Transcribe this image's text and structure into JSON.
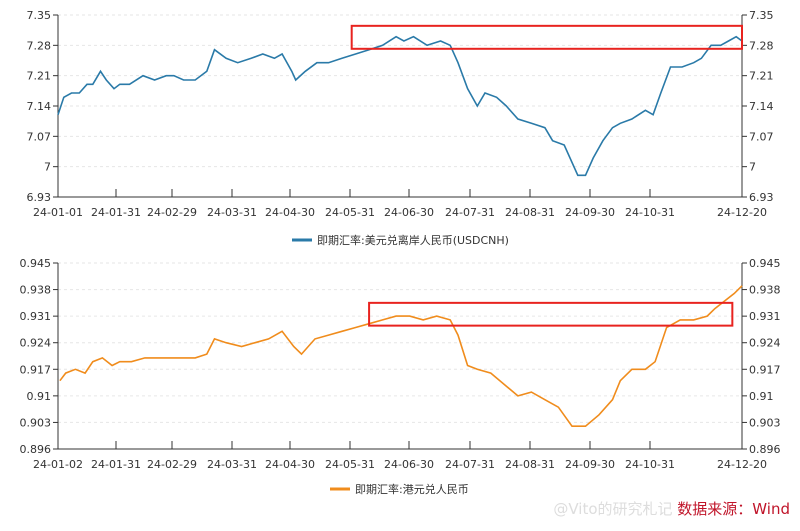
{
  "chart_data": [
    {
      "type": "line",
      "color": "#2a7aa8",
      "legend": "即期汇率:美元兑离岸人民币(USDCNH)",
      "legend_position": "bottom",
      "ylim": [
        6.93,
        7.35
      ],
      "yticks": [
        "7.35",
        "7.28",
        "7.21",
        "7.14",
        "7.07",
        "7",
        "6.93"
      ],
      "xticks": [
        "24-01-01",
        "24-01-31",
        "24-02-29",
        "24-03-31",
        "24-04-30",
        "24-05-31",
        "24-06-30",
        "24-07-31",
        "24-08-31",
        "24-09-30",
        "24-10-31",
        "24-12-20"
      ],
      "grid": true,
      "highlight": {
        "from": "2024-06-01",
        "to": "2024-12-20",
        "ylim": [
          7.272,
          7.325
        ],
        "color": "#e8231f"
      },
      "points": [
        [
          "2024-01-01",
          7.12
        ],
        [
          "2024-01-04",
          7.16
        ],
        [
          "2024-01-08",
          7.17
        ],
        [
          "2024-01-12",
          7.17
        ],
        [
          "2024-01-16",
          7.19
        ],
        [
          "2024-01-19",
          7.19
        ],
        [
          "2024-01-23",
          7.22
        ],
        [
          "2024-01-26",
          7.2
        ],
        [
          "2024-01-30",
          7.18
        ],
        [
          "2024-02-02",
          7.19
        ],
        [
          "2024-02-07",
          7.19
        ],
        [
          "2024-02-14",
          7.21
        ],
        [
          "2024-02-20",
          7.2
        ],
        [
          "2024-02-26",
          7.21
        ],
        [
          "2024-03-01",
          7.21
        ],
        [
          "2024-03-06",
          7.2
        ],
        [
          "2024-03-12",
          7.2
        ],
        [
          "2024-03-18",
          7.22
        ],
        [
          "2024-03-22",
          7.27
        ],
        [
          "2024-03-28",
          7.25
        ],
        [
          "2024-04-03",
          7.24
        ],
        [
          "2024-04-10",
          7.25
        ],
        [
          "2024-04-16",
          7.26
        ],
        [
          "2024-04-22",
          7.25
        ],
        [
          "2024-04-26",
          7.26
        ],
        [
          "2024-05-01",
          7.22
        ],
        [
          "2024-05-03",
          7.2
        ],
        [
          "2024-05-08",
          7.22
        ],
        [
          "2024-05-14",
          7.24
        ],
        [
          "2024-05-20",
          7.24
        ],
        [
          "2024-05-27",
          7.25
        ],
        [
          "2024-06-03",
          7.26
        ],
        [
          "2024-06-10",
          7.27
        ],
        [
          "2024-06-17",
          7.28
        ],
        [
          "2024-06-24",
          7.3
        ],
        [
          "2024-06-28",
          7.29
        ],
        [
          "2024-07-03",
          7.3
        ],
        [
          "2024-07-10",
          7.28
        ],
        [
          "2024-07-17",
          7.29
        ],
        [
          "2024-07-22",
          7.28
        ],
        [
          "2024-07-26",
          7.24
        ],
        [
          "2024-07-31",
          7.18
        ],
        [
          "2024-08-05",
          7.14
        ],
        [
          "2024-08-09",
          7.17
        ],
        [
          "2024-08-15",
          7.16
        ],
        [
          "2024-08-20",
          7.14
        ],
        [
          "2024-08-26",
          7.11
        ],
        [
          "2024-09-02",
          7.1
        ],
        [
          "2024-09-09",
          7.09
        ],
        [
          "2024-09-13",
          7.06
        ],
        [
          "2024-09-19",
          7.05
        ],
        [
          "2024-09-26",
          6.98
        ],
        [
          "2024-09-30",
          6.98
        ],
        [
          "2024-10-04",
          7.02
        ],
        [
          "2024-10-09",
          7.06
        ],
        [
          "2024-10-14",
          7.09
        ],
        [
          "2024-10-18",
          7.1
        ],
        [
          "2024-10-24",
          7.11
        ],
        [
          "2024-10-31",
          7.13
        ],
        [
          "2024-11-04",
          7.12
        ],
        [
          "2024-11-08",
          7.17
        ],
        [
          "2024-11-13",
          7.23
        ],
        [
          "2024-11-19",
          7.23
        ],
        [
          "2024-11-25",
          7.24
        ],
        [
          "2024-11-29",
          7.25
        ],
        [
          "2024-12-04",
          7.28
        ],
        [
          "2024-12-09",
          7.28
        ],
        [
          "2024-12-13",
          7.29
        ],
        [
          "2024-12-17",
          7.3
        ],
        [
          "2024-12-20",
          7.29
        ]
      ]
    },
    {
      "type": "line",
      "color": "#f08c1c",
      "legend": "即期汇率:港元兑人民币",
      "legend_position": "bottom",
      "ylim": [
        0.896,
        0.945
      ],
      "yticks": [
        "0.945",
        "0.938",
        "0.931",
        "0.924",
        "0.917",
        "0.91",
        "0.903",
        "0.896"
      ],
      "xticks": [
        "24-01-02",
        "24-01-31",
        "24-02-29",
        "24-03-31",
        "24-04-30",
        "24-05-31",
        "24-06-30",
        "24-07-31",
        "24-08-31",
        "24-09-30",
        "24-10-31",
        "24-12-20"
      ],
      "grid": true,
      "highlight": {
        "from": "2024-06-10",
        "to": "2024-12-15",
        "ylim": [
          0.9285,
          0.9345
        ],
        "color": "#e8231f"
      },
      "points": [
        [
          "2024-01-02",
          0.914
        ],
        [
          "2024-01-05",
          0.916
        ],
        [
          "2024-01-10",
          0.917
        ],
        [
          "2024-01-15",
          0.916
        ],
        [
          "2024-01-19",
          0.919
        ],
        [
          "2024-01-24",
          0.92
        ],
        [
          "2024-01-29",
          0.918
        ],
        [
          "2024-02-02",
          0.919
        ],
        [
          "2024-02-08",
          0.919
        ],
        [
          "2024-02-15",
          0.92
        ],
        [
          "2024-02-22",
          0.92
        ],
        [
          "2024-02-29",
          0.92
        ],
        [
          "2024-03-06",
          0.92
        ],
        [
          "2024-03-12",
          0.92
        ],
        [
          "2024-03-18",
          0.921
        ],
        [
          "2024-03-22",
          0.925
        ],
        [
          "2024-03-28",
          0.924
        ],
        [
          "2024-04-05",
          0.923
        ],
        [
          "2024-04-12",
          0.924
        ],
        [
          "2024-04-19",
          0.925
        ],
        [
          "2024-04-26",
          0.927
        ],
        [
          "2024-05-02",
          0.923
        ],
        [
          "2024-05-06",
          0.921
        ],
        [
          "2024-05-13",
          0.925
        ],
        [
          "2024-05-20",
          0.926
        ],
        [
          "2024-05-27",
          0.927
        ],
        [
          "2024-06-03",
          0.928
        ],
        [
          "2024-06-10",
          0.929
        ],
        [
          "2024-06-17",
          0.93
        ],
        [
          "2024-06-24",
          0.931
        ],
        [
          "2024-07-01",
          0.931
        ],
        [
          "2024-07-08",
          0.93
        ],
        [
          "2024-07-15",
          0.931
        ],
        [
          "2024-07-22",
          0.93
        ],
        [
          "2024-07-26",
          0.926
        ],
        [
          "2024-07-31",
          0.918
        ],
        [
          "2024-08-05",
          0.917
        ],
        [
          "2024-08-12",
          0.916
        ],
        [
          "2024-08-19",
          0.913
        ],
        [
          "2024-08-26",
          0.91
        ],
        [
          "2024-09-02",
          0.911
        ],
        [
          "2024-09-09",
          0.909
        ],
        [
          "2024-09-16",
          0.907
        ],
        [
          "2024-09-23",
          0.902
        ],
        [
          "2024-09-30",
          0.902
        ],
        [
          "2024-10-07",
          0.905
        ],
        [
          "2024-10-14",
          0.909
        ],
        [
          "2024-10-18",
          0.914
        ],
        [
          "2024-10-24",
          0.917
        ],
        [
          "2024-10-31",
          0.917
        ],
        [
          "2024-11-05",
          0.919
        ],
        [
          "2024-11-11",
          0.928
        ],
        [
          "2024-11-18",
          0.93
        ],
        [
          "2024-11-25",
          0.93
        ],
        [
          "2024-12-02",
          0.931
        ],
        [
          "2024-12-06",
          0.933
        ],
        [
          "2024-12-11",
          0.935
        ],
        [
          "2024-12-16",
          0.937
        ],
        [
          "2024-12-20",
          0.939
        ]
      ]
    }
  ],
  "source": "数据来源：Wind",
  "watermark": "@Vito的研究札记"
}
